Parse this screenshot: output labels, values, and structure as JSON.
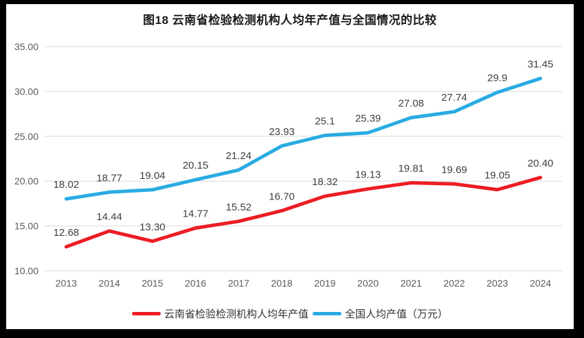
{
  "chart_data": {
    "type": "line",
    "title": "图18  云南省检验检测机构人均年产值与全国情况的比较",
    "categories": [
      "2013",
      "2014",
      "2015",
      "2016",
      "2017",
      "2018",
      "2019",
      "2020",
      "2021",
      "2022",
      "2023",
      "2024"
    ],
    "series": [
      {
        "id": "yunnan",
        "name": "云南省检验检测机构人均年产值",
        "color": "#ED1C24",
        "values": [
          12.68,
          14.44,
          13.3,
          14.77,
          15.52,
          16.7,
          18.32,
          19.13,
          19.81,
          19.69,
          19.05,
          20.4
        ],
        "labels": [
          "12.68",
          "14.44",
          "13.30",
          "14.77",
          "15.52",
          "16.70",
          "18.32",
          "19.13",
          "19.81",
          "19.69",
          "19.05",
          "20.40"
        ]
      },
      {
        "id": "national",
        "name": "全国人均产值（万元）",
        "color": "#29ABE2",
        "values": [
          18.02,
          18.77,
          19.04,
          20.15,
          21.24,
          23.93,
          25.1,
          25.39,
          27.08,
          27.74,
          29.9,
          31.45
        ],
        "labels": [
          "18.02",
          "18.77",
          "19.04",
          "20.15",
          "21.24",
          "23.93",
          "25.1",
          "25.39",
          "27.08",
          "27.74",
          "29.9",
          "31.45"
        ]
      }
    ],
    "xlabel": "",
    "ylabel": "",
    "ylim": [
      10,
      35
    ],
    "yticks": [
      "10.00",
      "15.00",
      "20.00",
      "25.00",
      "30.00",
      "35.00"
    ],
    "grid": "horizontal",
    "legend_position": "bottom",
    "grid_color": "#D9D9D9",
    "axis_label_color": "#595959",
    "data_label_color": "#404040",
    "background": "#FFFFFF",
    "frame_color": "#000000"
  }
}
